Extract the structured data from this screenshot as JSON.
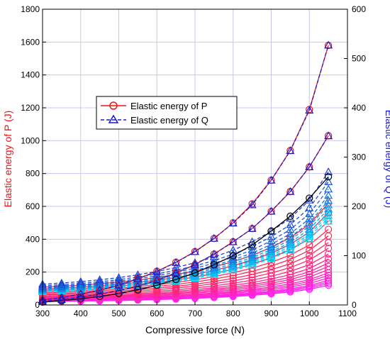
{
  "chart_data": {
    "type": "line",
    "xlabel": "Compressive force (N)",
    "ylabel_left": "Elastic energy of P (J)",
    "ylabel_right": "Elastic energy of Q (J)",
    "xlim": [
      300,
      1100
    ],
    "ylim_left": [
      0,
      1800
    ],
    "ylim_right": [
      0,
      600
    ],
    "x_ticks": [
      300,
      400,
      500,
      600,
      700,
      800,
      900,
      1000,
      1100
    ],
    "y_left_ticks": [
      0,
      200,
      400,
      600,
      800,
      1000,
      1200,
      1400,
      1600,
      1800
    ],
    "y_right_ticks": [
      0,
      100,
      200,
      300,
      400,
      500,
      600
    ],
    "grid": true,
    "legend": {
      "position": "upper-left-center",
      "entries": [
        {
          "label": "Elastic energy of P",
          "color": "#e8141a",
          "marker": "circle",
          "style": "solid"
        },
        {
          "label": "Elastic energy of Q",
          "color": "#1a1acc",
          "marker": "triangle",
          "style": "dashed"
        }
      ]
    },
    "colors": {
      "left_axis": "#e8141a",
      "right_axis": "#1a1acc",
      "grid": "#c8c8ee",
      "p_top": "#e8141a",
      "p_mid": "#000000",
      "p_family_from": "#ff2a2a",
      "p_family_to": "#ff22ff",
      "q_top": "#1a1acc",
      "q_family_from": "#1f3fd0",
      "q_family_to": "#00e5ff"
    },
    "x": [
      300,
      350,
      400,
      450,
      500,
      550,
      600,
      650,
      700,
      750,
      800,
      850,
      900,
      950,
      1000,
      1050
    ],
    "p_series": [
      {
        "axis": "left",
        "color": "#e8141a",
        "style": "solid",
        "marker": "circle",
        "values": [
          30,
          45,
          65,
          90,
          120,
          160,
          205,
          260,
          325,
          405,
          500,
          615,
          760,
          940,
          1190,
          1580
        ]
      },
      {
        "axis": "left",
        "color": "#e8141a",
        "style": "solid",
        "marker": "circle",
        "values": [
          22,
          33,
          48,
          65,
          88,
          115,
          150,
          195,
          245,
          310,
          385,
          465,
          570,
          690,
          840,
          1030
        ]
      },
      {
        "axis": "left",
        "color": "#000000",
        "style": "solid",
        "marker": "circle",
        "values": [
          17,
          26,
          38,
          52,
          70,
          92,
          120,
          155,
          195,
          245,
          300,
          365,
          450,
          540,
          650,
          780
        ]
      }
    ],
    "p_family": {
      "axis": "left",
      "style": "solid",
      "marker": "circle",
      "color_from": "#ff2a2a",
      "color_to": "#ff22ff",
      "end_values": [
        620,
        560,
        510,
        460,
        420,
        380,
        345,
        310,
        280,
        255,
        235,
        215,
        195,
        180,
        165,
        150,
        140,
        130,
        120
      ]
    },
    "q_series": [
      {
        "axis": "right",
        "color": "#1a1acc",
        "style": "dashed",
        "marker": "triangle",
        "values": [
          10,
          15,
          22,
          30,
          40,
          53,
          68,
          86,
          108,
          135,
          166,
          203,
          253,
          313,
          395,
          527
        ]
      },
      {
        "axis": "right",
        "color": "#1a1acc",
        "style": "dashed",
        "marker": "triangle",
        "values": [
          7,
          11,
          16,
          22,
          29,
          38,
          50,
          65,
          82,
          103,
          128,
          155,
          190,
          230,
          280,
          343
        ]
      }
    ],
    "q_family": {
      "axis": "right",
      "style": "dashed",
      "marker": "triangle",
      "color_from": "#1f3fd0",
      "color_to": "#00e5ff",
      "end_values": [
        270,
        250,
        235,
        222,
        212,
        203,
        195,
        188,
        182,
        176,
        170
      ]
    }
  }
}
